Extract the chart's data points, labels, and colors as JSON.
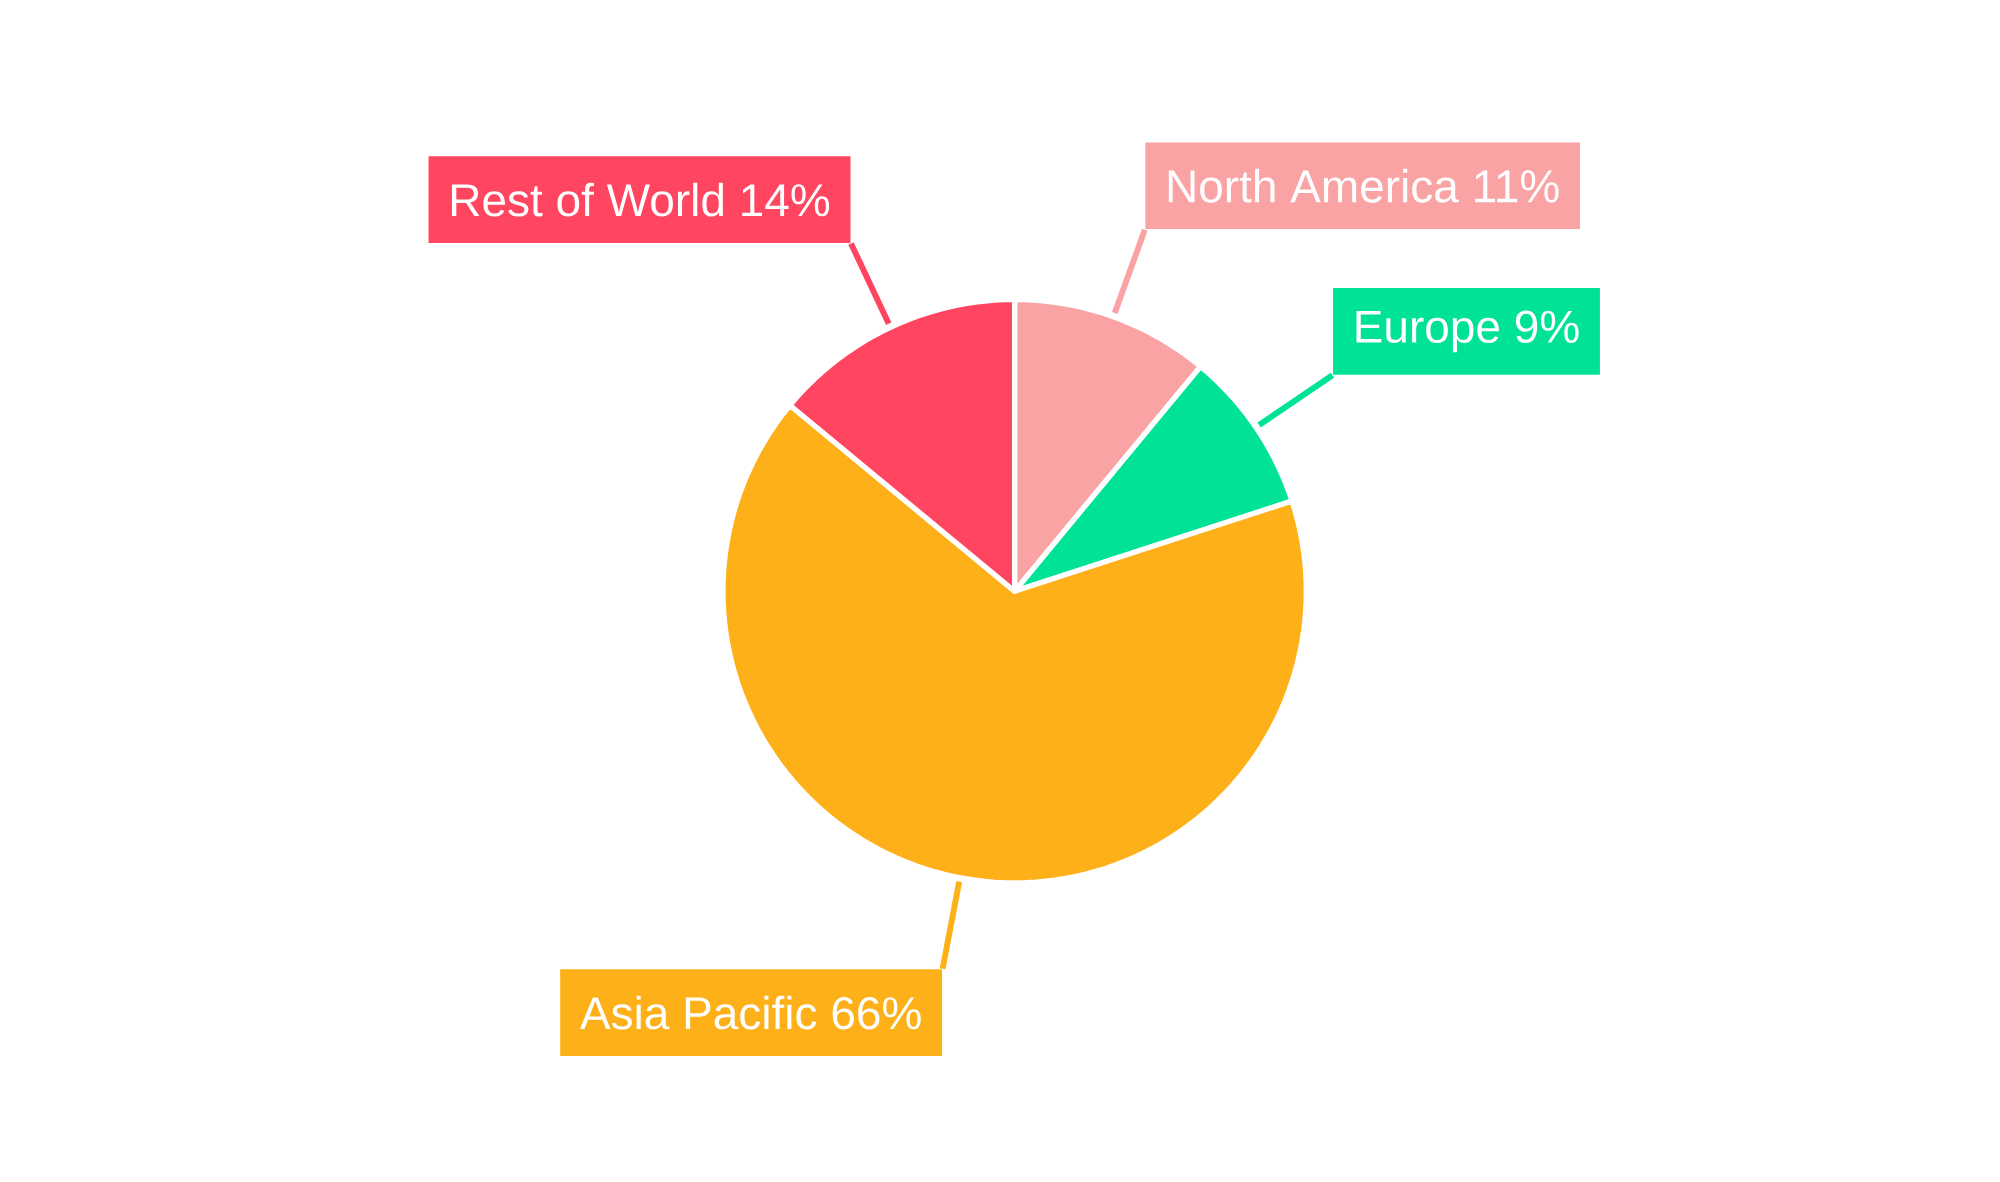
{
  "chart_data": {
    "type": "pie",
    "categories": [
      "North America",
      "Europe",
      "Asia Pacific",
      "Rest of World"
    ],
    "values": [
      11,
      9,
      66,
      14
    ],
    "colors": [
      "#f9a3a4",
      "#00e396",
      "#feb019",
      "#ff4560"
    ],
    "value_labels": [
      "11%",
      "9%",
      "66%",
      "14%"
    ]
  }
}
